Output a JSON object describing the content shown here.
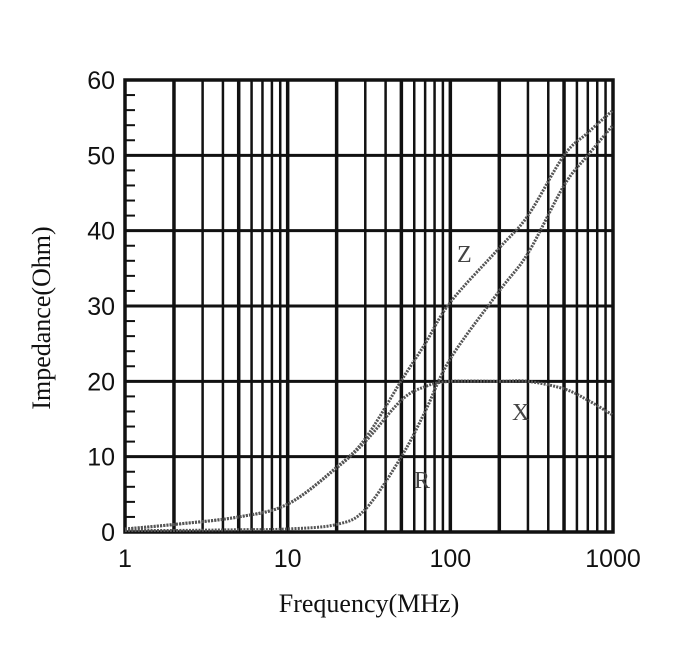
{
  "chart_data": {
    "type": "line",
    "title": "",
    "xlabel": "Frequency(MHz)",
    "ylabel": "Impedance(Ohm)",
    "xscale": "log",
    "xlim": [
      1,
      1000
    ],
    "ylim": [
      0,
      60
    ],
    "grid": true,
    "xticks": [
      "1",
      "10",
      "100",
      "1000"
    ],
    "yticks": [
      "0",
      "10",
      "20",
      "30",
      "40",
      "50",
      "60"
    ],
    "x": [
      1,
      2,
      5,
      10,
      20,
      30,
      50,
      70,
      100,
      200,
      300,
      500,
      700,
      1000
    ],
    "series": [
      {
        "name": "Z",
        "values": [
          0.4,
          1.0,
          2.0,
          3.7,
          8.6,
          12.4,
          20.1,
          25.0,
          30.5,
          37.7,
          42.0,
          50.0,
          53.0,
          56.0
        ]
      },
      {
        "name": "X",
        "values": [
          0.4,
          1.0,
          2.0,
          3.7,
          8.5,
          12.0,
          17.5,
          19.3,
          20.0,
          20.0,
          20.0,
          19.0,
          17.5,
          15.5
        ]
      },
      {
        "name": "R",
        "values": [
          0.2,
          0.2,
          0.3,
          0.4,
          1.0,
          3.0,
          10.0,
          16.0,
          23.0,
          32.0,
          37.0,
          46.0,
          50.0,
          54.0
        ]
      }
    ],
    "curve_color": "#555555"
  }
}
